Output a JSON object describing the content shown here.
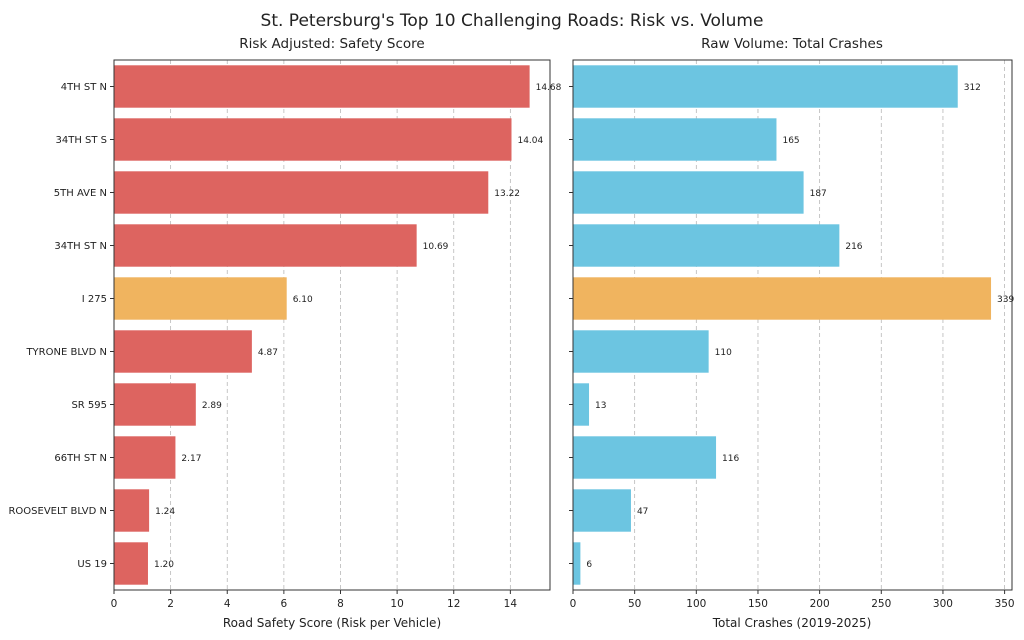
{
  "chart_data": {
    "type": "bar",
    "suptitle": "St. Petersburg's Top 10 Challenging Roads: Risk vs. Volume",
    "categories": [
      "4TH ST N",
      "34TH ST S",
      "5TH AVE N",
      "34TH ST N",
      "I 275",
      "TYRONE BLVD N",
      "SR 595",
      "66TH ST N",
      "ROOSEVELT BLVD N",
      "US 19"
    ],
    "highlight_index": 4,
    "panels": [
      {
        "title": "Risk Adjusted: Safety Score",
        "xlabel": "Road Safety Score (Risk per Vehicle)",
        "xlim": [
          0,
          15.4
        ],
        "xticks": [
          0,
          2,
          4,
          6,
          8,
          10,
          12,
          14
        ],
        "values": [
          14.68,
          14.04,
          13.22,
          10.69,
          6.1,
          4.87,
          2.89,
          2.17,
          1.24,
          1.2
        ],
        "labels": [
          "14.68",
          "14.04",
          "13.22",
          "10.69",
          "6.10",
          "4.87",
          "2.89",
          "2.17",
          "1.24",
          "1.20"
        ],
        "color": "#dd6460",
        "highlight_color": "#f0b45f"
      },
      {
        "title": "Raw Volume: Total Crashes",
        "xlabel": "Total Crashes (2019-2025)",
        "xlim": [
          0,
          356
        ],
        "xticks": [
          0,
          50,
          100,
          150,
          200,
          250,
          300,
          350
        ],
        "values": [
          312,
          165,
          187,
          216,
          339,
          110,
          13,
          116,
          47,
          6
        ],
        "labels": [
          "312",
          "165",
          "187",
          "216",
          "339",
          "110",
          "13",
          "116",
          "47",
          "6"
        ],
        "color": "#6cc5e1",
        "highlight_color": "#f0b45f"
      }
    ]
  }
}
